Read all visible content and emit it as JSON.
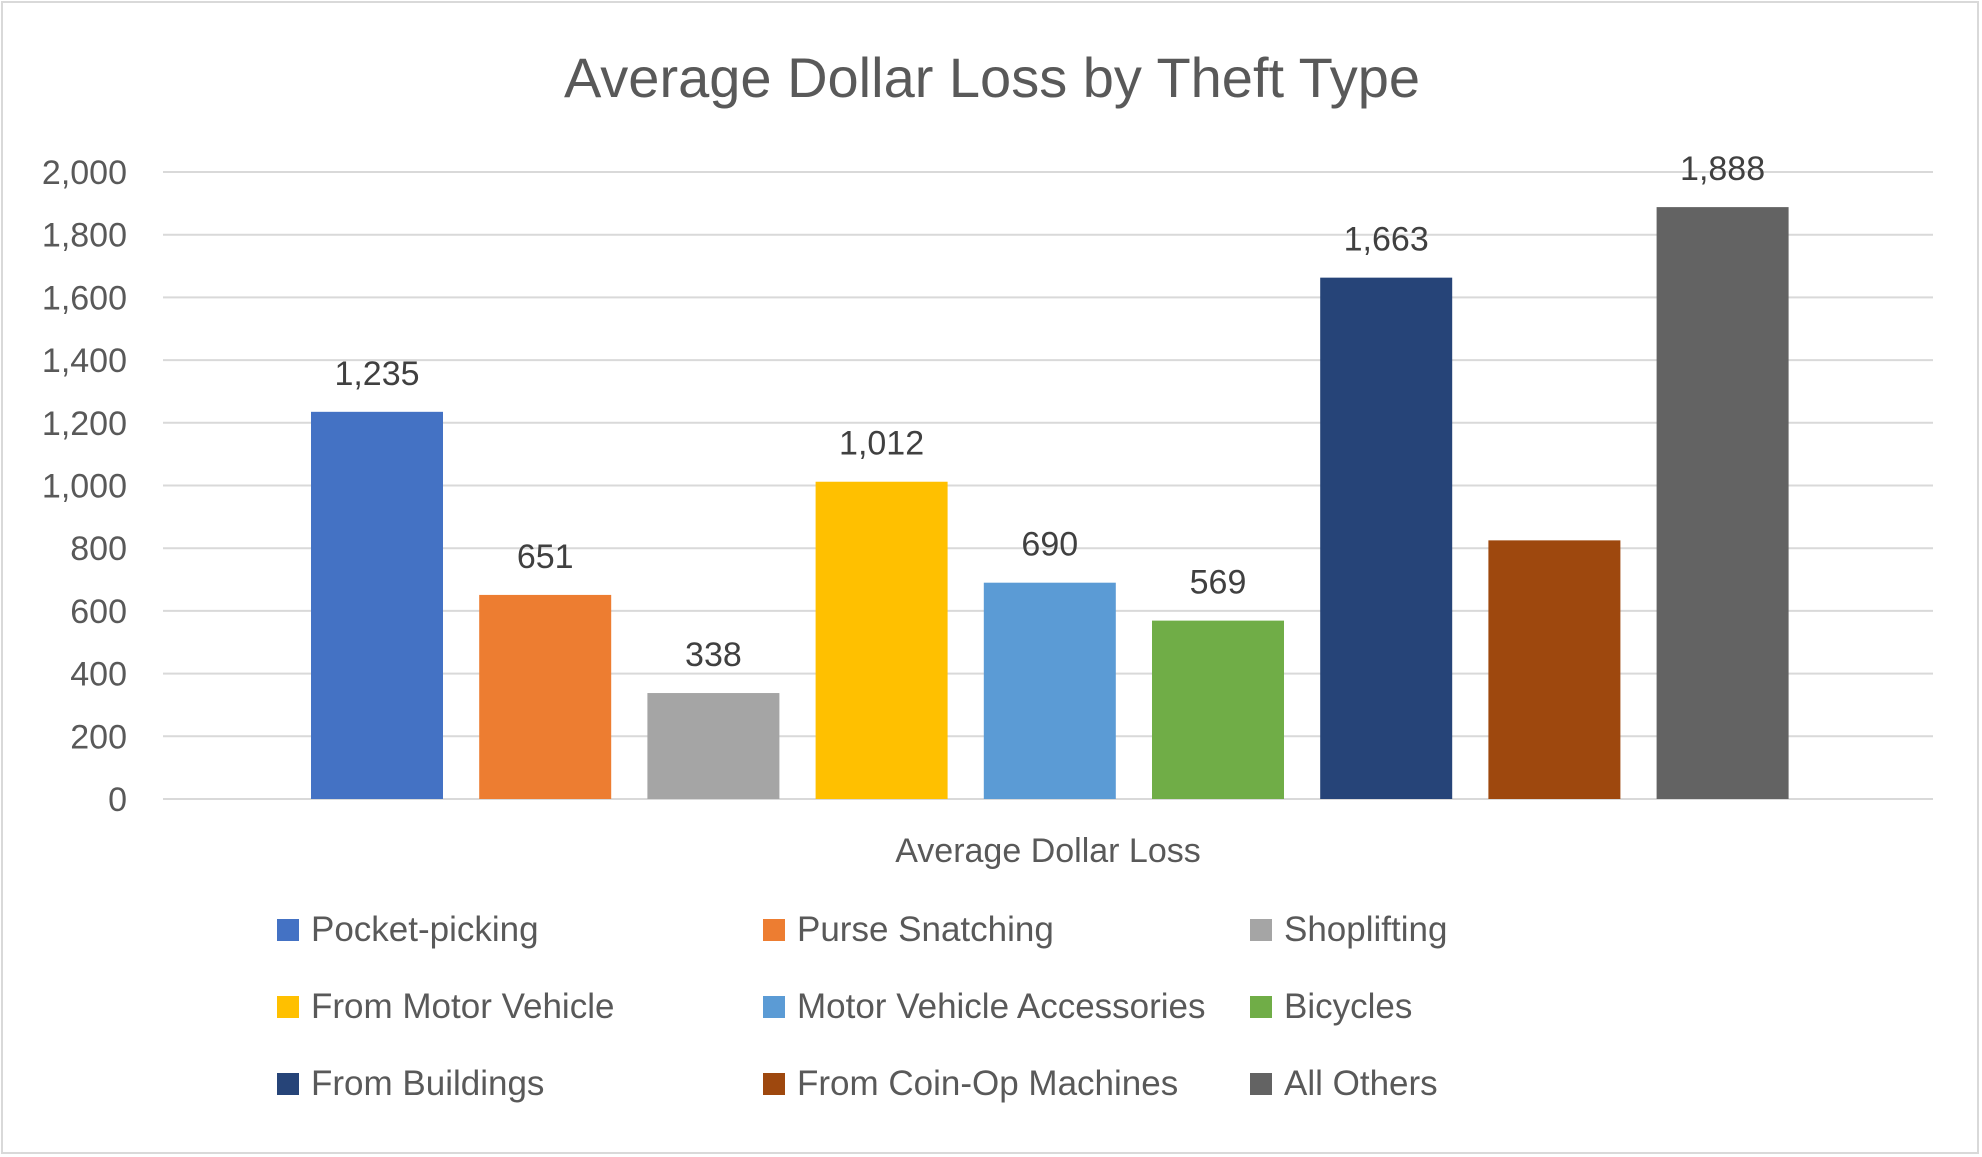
{
  "chart_data": {
    "type": "bar",
    "title": "Average Dollar Loss by Theft Type",
    "xlabel": "Average Dollar Loss",
    "ylabel": "",
    "ylim": [
      0,
      2000
    ],
    "yticks": [
      0,
      200,
      400,
      600,
      800,
      1000,
      1200,
      1400,
      1600,
      1800,
      2000
    ],
    "ytick_labels": [
      "0",
      "200",
      "400",
      "600",
      "800",
      "1,000",
      "1,200",
      "1,400",
      "1,600",
      "1,800",
      "2,000"
    ],
    "categories": [
      "Average Dollar Loss"
    ],
    "grid": true,
    "legend_position": "bottom",
    "series": [
      {
        "name": "Pocket-picking",
        "values": [
          1235
        ],
        "label": "1,235",
        "color": "#4472C4"
      },
      {
        "name": "Purse Snatching",
        "values": [
          651
        ],
        "label": "651",
        "color": "#ED7D31"
      },
      {
        "name": "Shoplifting",
        "values": [
          338
        ],
        "label": "338",
        "color": "#A5A5A5"
      },
      {
        "name": "From Motor Vehicle",
        "values": [
          1012
        ],
        "label": "1,012",
        "color": "#FFC000"
      },
      {
        "name": "Motor Vehicle Accessories",
        "values": [
          690
        ],
        "label": "690",
        "color": "#5B9BD5"
      },
      {
        "name": "Bicycles",
        "values": [
          569
        ],
        "label": "569",
        "color": "#70AD47"
      },
      {
        "name": "From Buildings",
        "values": [
          1663
        ],
        "label": "1,663",
        "color": "#264478"
      },
      {
        "name": "From Coin-Op Machines",
        "values": [
          825
        ],
        "label": "",
        "color": "#9E480E"
      },
      {
        "name": "All Others",
        "values": [
          1888
        ],
        "label": "1,888",
        "color": "#636363"
      }
    ]
  }
}
